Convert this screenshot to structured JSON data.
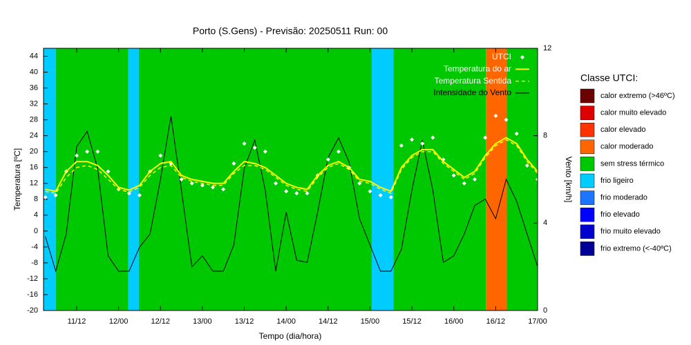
{
  "chart_data": {
    "type": "line",
    "title": "Porto (S.Gens) - Previsão: 20250511 Run: 00",
    "x_label": "Tempo (dia/hora)",
    "y_label": "Temperatura [ºC]",
    "y2_label": "Vento [km/h]",
    "xlim": [
      2.5,
      144
    ],
    "xticks": [
      {
        "value": 12,
        "label": "11/12"
      },
      {
        "value": 24,
        "label": "12/00"
      },
      {
        "value": 36,
        "label": "12/12"
      },
      {
        "value": 48,
        "label": "13/00"
      },
      {
        "value": 60,
        "label": "13/12"
      },
      {
        "value": 72,
        "label": "14/00"
      },
      {
        "value": 84,
        "label": "14/12"
      },
      {
        "value": 96,
        "label": "15/00"
      },
      {
        "value": 108,
        "label": "15/12"
      },
      {
        "value": 120,
        "label": "16/00"
      },
      {
        "value": 132,
        "label": "16/12"
      },
      {
        "value": 144,
        "label": "17/00"
      }
    ],
    "ylim": [
      -20,
      46
    ],
    "yticks": [
      -20,
      -16,
      -12,
      -8,
      -4,
      0,
      4,
      8,
      12,
      16,
      20,
      24,
      28,
      32,
      36,
      40,
      44
    ],
    "y2lim": [
      0,
      12
    ],
    "y2ticks": [
      0,
      4,
      8,
      12
    ],
    "grid": false,
    "legend": "top-right",
    "bands": [
      {
        "from": 2.5,
        "to": 6,
        "color": "#00ccff"
      },
      {
        "from": 6,
        "to": 26.8,
        "color": "#00c800"
      },
      {
        "from": 26.8,
        "to": 29.8,
        "color": "#00ccff"
      },
      {
        "from": 29.8,
        "to": 96.5,
        "color": "#00c800"
      },
      {
        "from": 96.5,
        "to": 102.7,
        "color": "#00ccff"
      },
      {
        "from": 102.7,
        "to": 129.2,
        "color": "#00c800"
      },
      {
        "from": 129.2,
        "to": 135.2,
        "color": "#ff6600"
      },
      {
        "from": 135.2,
        "to": 144,
        "color": "#00c800"
      }
    ],
    "class_legend_title": "Classe UTCI:",
    "classes": [
      {
        "name": "calor extremo (>46ºC)",
        "color": "#6b0000"
      },
      {
        "name": "calor muito elevado",
        "color": "#dd0000"
      },
      {
        "name": "calor elevado",
        "color": "#ff3300"
      },
      {
        "name": "calor moderado",
        "color": "#ff6600"
      },
      {
        "name": "sem stress térmico",
        "color": "#00c800"
      },
      {
        "name": "frio ligeiro",
        "color": "#00ccff"
      },
      {
        "name": "frio moderado",
        "color": "#1a75ff"
      },
      {
        "name": "frio elevado",
        "color": "#0000ff"
      },
      {
        "name": "frio muito elevado",
        "color": "#0000cc"
      },
      {
        "name": "frio extremo (<-40ºC)",
        "color": "#000099"
      }
    ],
    "x": [
      3,
      6,
      9,
      12,
      15,
      18,
      21,
      24,
      27,
      30,
      33,
      36,
      39,
      42,
      45,
      48,
      51,
      54,
      57,
      60,
      63,
      66,
      69,
      72,
      75,
      78,
      81,
      84,
      87,
      90,
      93,
      96,
      99,
      102,
      105,
      108,
      111,
      114,
      117,
      120,
      123,
      126,
      129,
      132,
      135,
      138,
      141,
      144
    ],
    "series": [
      {
        "name": "UTCI",
        "color": "#ffffff",
        "style": "points",
        "values": [
          8.5,
          9,
          15,
          19,
          20,
          20,
          15,
          10.5,
          9.5,
          9,
          15,
          19,
          17,
          13,
          12,
          11.5,
          11,
          10.5,
          17,
          22,
          21,
          20,
          12,
          10,
          9.5,
          9.5,
          14,
          18,
          20,
          16,
          12,
          10,
          9,
          8.5,
          21.5,
          23,
          22,
          23.5,
          18,
          14,
          12,
          13,
          23.5,
          29,
          28,
          24.5,
          16.5,
          13
        ]
      },
      {
        "name": "Temperatura do ar",
        "color": "#ffff00",
        "style": "solid",
        "values": [
          10.5,
          10,
          15,
          17.5,
          17.5,
          16.5,
          14,
          11,
          10.3,
          11.5,
          15,
          17,
          17.5,
          14,
          13,
          12.5,
          12,
          12,
          15,
          17.5,
          17,
          16,
          14,
          12,
          11,
          10.5,
          14,
          16.5,
          17.5,
          16,
          13,
          12.5,
          11,
          10,
          16,
          19,
          20.5,
          20.5,
          17.5,
          15.5,
          13.5,
          15,
          19,
          22,
          23.5,
          22,
          18,
          15
        ]
      },
      {
        "name": "Temperatura Sentida",
        "color": "#ffff00",
        "style": "dashed",
        "values": [
          10,
          9.5,
          13.5,
          16,
          16.5,
          15.5,
          13,
          10.5,
          9.8,
          11,
          14,
          16,
          16.5,
          13.5,
          12.5,
          12,
          11.5,
          11.5,
          14.5,
          16.5,
          16.5,
          15.5,
          13.5,
          11.5,
          10.5,
          10,
          13.5,
          16,
          17,
          15.5,
          12.5,
          12,
          10.5,
          9.5,
          15.5,
          18.5,
          20,
          20,
          17,
          15,
          13,
          14.5,
          18.5,
          21.5,
          23,
          21.5,
          17.5,
          14.5
        ]
      },
      {
        "name": "Intensidade do Vento",
        "color": "#000000",
        "style": "thin",
        "axis": "y2",
        "values": [
          3.4,
          1.8,
          3.5,
          7.5,
          8.2,
          6.5,
          2.5,
          1.8,
          1.8,
          2.9,
          3.5,
          6,
          8.9,
          5.5,
          2,
          2.5,
          1.8,
          1.8,
          3,
          6.5,
          7.8,
          5.5,
          1.8,
          4.5,
          2.3,
          2.2,
          4.5,
          7,
          7.9,
          6.8,
          4.2,
          3,
          1.8,
          1.8,
          2.8,
          5.5,
          7.8,
          5.5,
          2.2,
          2.5,
          3.5,
          4.8,
          5.1,
          4.2,
          6,
          5,
          3.5,
          2
        ]
      }
    ]
  }
}
